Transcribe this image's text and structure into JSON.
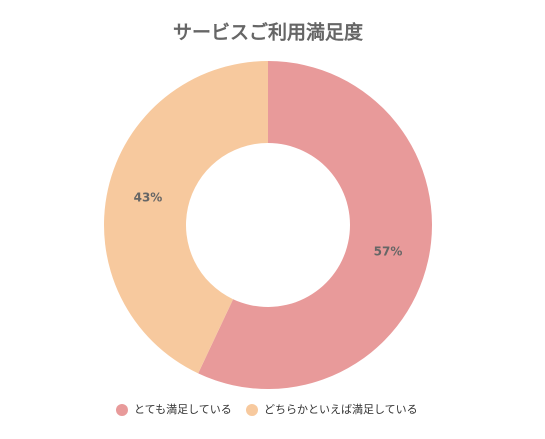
{
  "chart_data": {
    "type": "donut",
    "title": "サービスご利用満足度",
    "categories": [
      "とても満足している",
      "どちらかといえば満足している"
    ],
    "values": [
      57,
      43
    ],
    "value_labels": [
      "57%",
      "43%"
    ],
    "colors": [
      "#e89a9a",
      "#f7c99e"
    ],
    "legend": "bottom"
  }
}
